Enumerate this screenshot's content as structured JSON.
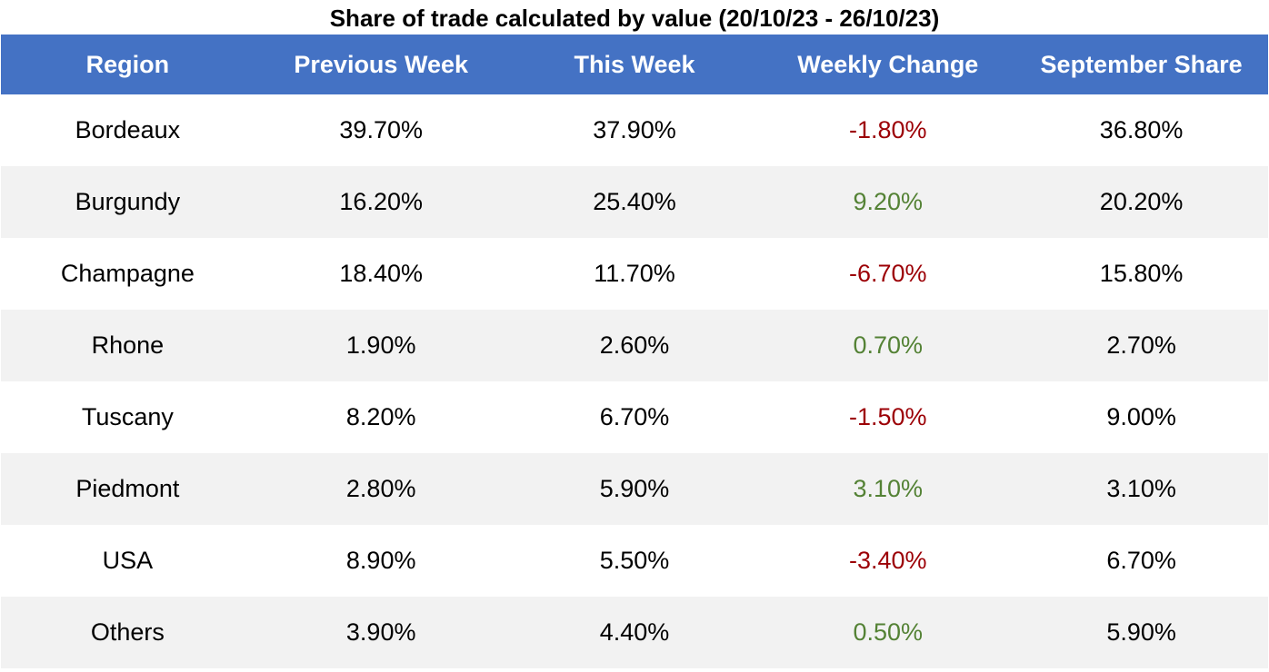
{
  "title": "Share of trade calculated by value (20/10/23 - 26/10/23)",
  "colors": {
    "header_bg": "#4472c4",
    "header_text": "#ffffff",
    "negative": "#9c0006",
    "positive": "#548235",
    "band": "#f2f2f2"
  },
  "chart_data": {
    "type": "table",
    "title": "Share of trade calculated by value (20/10/23 - 26/10/23)",
    "columns": [
      "Region",
      "Previous Week",
      "This Week",
      "Weekly Change",
      "September Share"
    ],
    "rows": [
      [
        "Bordeaux",
        "39.70%",
        "37.90%",
        "-1.80%",
        "36.80%"
      ],
      [
        "Burgundy",
        "16.20%",
        "25.40%",
        "9.20%",
        "20.20%"
      ],
      [
        "Champagne",
        "18.40%",
        "11.70%",
        "-6.70%",
        "15.80%"
      ],
      [
        "Rhone",
        "1.90%",
        "2.60%",
        "0.70%",
        "2.70%"
      ],
      [
        "Tuscany",
        "8.20%",
        "6.70%",
        "-1.50%",
        "9.00%"
      ],
      [
        "Piedmont",
        "2.80%",
        "5.90%",
        "3.10%",
        "3.10%"
      ],
      [
        "USA",
        "8.90%",
        "5.50%",
        "-3.40%",
        "6.70%"
      ],
      [
        "Others",
        "3.90%",
        "4.40%",
        "0.50%",
        "5.90%"
      ]
    ]
  }
}
